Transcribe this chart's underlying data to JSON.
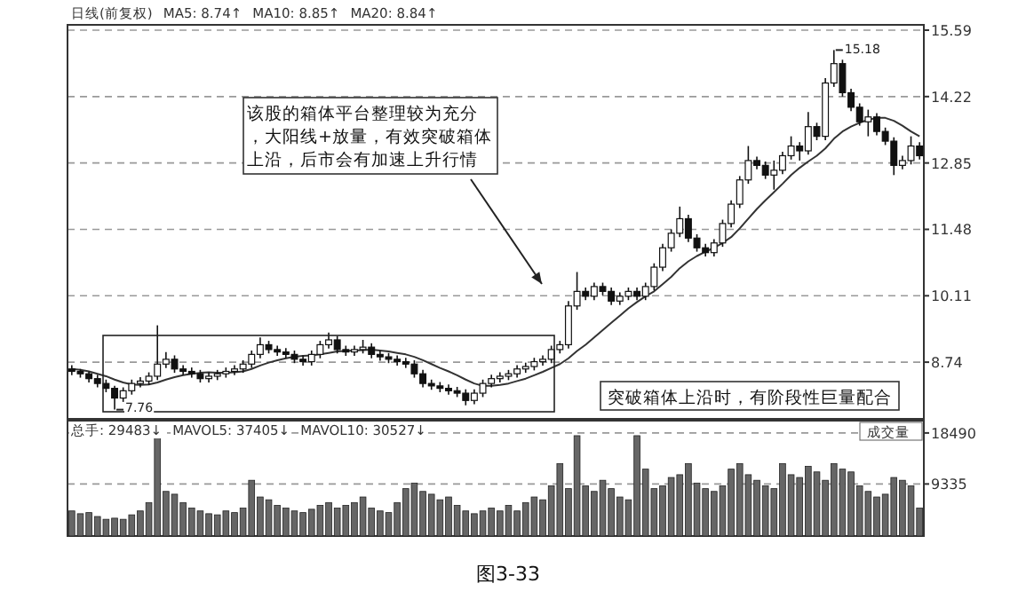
{
  "chart_data": [
    {
      "type": "candlestick",
      "subtitle": "日线(前复权)",
      "categories": [
        null,
        null,
        null,
        null,
        null,
        null,
        null,
        null,
        null,
        null,
        null,
        null,
        null,
        null,
        null,
        null,
        null,
        null,
        null,
        null,
        null,
        null,
        null,
        null,
        null,
        null,
        null,
        null,
        null,
        null,
        null,
        null,
        null,
        null,
        null,
        null,
        null,
        null,
        null,
        null,
        null,
        null,
        null,
        null,
        null,
        null,
        null,
        null,
        null,
        null,
        null,
        null,
        null,
        null,
        null,
        null,
        null,
        null,
        null,
        null,
        null,
        null,
        null,
        null,
        null,
        null,
        null,
        null,
        null,
        null,
        null,
        null,
        null,
        null,
        null,
        null,
        null,
        null,
        null,
        null,
        null,
        null,
        null,
        null,
        null,
        null,
        null,
        null,
        null,
        null,
        null,
        null,
        null,
        null,
        null,
        null,
        null,
        null,
        null,
        null
      ],
      "ohlc": [
        [
          8.6,
          8.68,
          8.47,
          8.55
        ],
        [
          8.55,
          8.6,
          8.42,
          8.5
        ],
        [
          8.5,
          8.55,
          8.32,
          8.4
        ],
        [
          8.4,
          8.48,
          8.22,
          8.3
        ],
        [
          8.3,
          8.38,
          8.12,
          8.2
        ],
        [
          8.2,
          8.25,
          7.76,
          8.0
        ],
        [
          8.0,
          8.22,
          7.92,
          8.15
        ],
        [
          8.15,
          8.38,
          8.07,
          8.3
        ],
        [
          8.3,
          8.43,
          8.22,
          8.35
        ],
        [
          8.35,
          8.53,
          8.27,
          8.45
        ],
        [
          8.45,
          9.5,
          8.37,
          8.7
        ],
        [
          8.7,
          8.95,
          8.62,
          8.8
        ],
        [
          8.8,
          8.88,
          8.52,
          8.6
        ],
        [
          8.6,
          8.68,
          8.47,
          8.55
        ],
        [
          8.55,
          8.63,
          8.42,
          8.5
        ],
        [
          8.5,
          8.58,
          8.32,
          8.4
        ],
        [
          8.4,
          8.53,
          8.32,
          8.45
        ],
        [
          8.45,
          8.58,
          8.37,
          8.5
        ],
        [
          8.5,
          8.63,
          8.42,
          8.55
        ],
        [
          8.55,
          8.68,
          8.47,
          8.6
        ],
        [
          8.6,
          8.78,
          8.52,
          8.7
        ],
        [
          8.7,
          8.98,
          8.62,
          8.9
        ],
        [
          8.9,
          9.25,
          8.82,
          9.1
        ],
        [
          9.1,
          9.18,
          8.92,
          9.0
        ],
        [
          9.0,
          9.08,
          8.87,
          8.95
        ],
        [
          8.95,
          9.03,
          8.82,
          8.9
        ],
        [
          8.9,
          8.98,
          8.72,
          8.8
        ],
        [
          8.8,
          8.88,
          8.67,
          8.75
        ],
        [
          8.75,
          8.98,
          8.67,
          8.9
        ],
        [
          8.9,
          9.18,
          8.82,
          9.1
        ],
        [
          9.1,
          9.35,
          9.02,
          9.2
        ],
        [
          9.2,
          9.28,
          8.92,
          9.0
        ],
        [
          9.0,
          9.08,
          8.87,
          8.95
        ],
        [
          8.95,
          9.08,
          8.87,
          9.0
        ],
        [
          9.0,
          9.2,
          8.92,
          9.05
        ],
        [
          9.05,
          9.13,
          8.82,
          8.9
        ],
        [
          8.9,
          8.98,
          8.77,
          8.85
        ],
        [
          8.85,
          8.93,
          8.72,
          8.8
        ],
        [
          8.8,
          8.88,
          8.67,
          8.75
        ],
        [
          8.75,
          8.83,
          8.62,
          8.7
        ],
        [
          8.7,
          8.78,
          8.42,
          8.5
        ],
        [
          8.5,
          8.58,
          8.22,
          8.3
        ],
        [
          8.3,
          8.38,
          8.17,
          8.25
        ],
        [
          8.25,
          8.33,
          8.12,
          8.2
        ],
        [
          8.2,
          8.28,
          8.07,
          8.15
        ],
        [
          8.15,
          8.23,
          8.02,
          8.1
        ],
        [
          8.1,
          8.18,
          7.85,
          7.95
        ],
        [
          7.95,
          8.18,
          7.87,
          8.1
        ],
        [
          8.1,
          8.38,
          8.02,
          8.3
        ],
        [
          8.3,
          8.48,
          8.22,
          8.4
        ],
        [
          8.4,
          8.53,
          8.32,
          8.45
        ],
        [
          8.45,
          8.58,
          8.37,
          8.5
        ],
        [
          8.5,
          8.68,
          8.42,
          8.6
        ],
        [
          8.6,
          8.73,
          8.52,
          8.65
        ],
        [
          8.65,
          8.83,
          8.57,
          8.75
        ],
        [
          8.75,
          8.88,
          8.67,
          8.8
        ],
        [
          8.8,
          9.08,
          8.72,
          9.0
        ],
        [
          9.0,
          9.18,
          8.92,
          9.1
        ],
        [
          9.1,
          10.0,
          9.02,
          9.9
        ],
        [
          9.9,
          10.6,
          9.82,
          10.2
        ],
        [
          10.2,
          10.28,
          10.02,
          10.1
        ],
        [
          10.1,
          10.38,
          10.02,
          10.3
        ],
        [
          10.3,
          10.38,
          10.12,
          10.2
        ],
        [
          10.2,
          10.28,
          9.92,
          10.0
        ],
        [
          10.0,
          10.18,
          9.92,
          10.1
        ],
        [
          10.1,
          10.28,
          10.02,
          10.2
        ],
        [
          10.2,
          10.28,
          10.02,
          10.1
        ],
        [
          10.1,
          10.38,
          10.02,
          10.3
        ],
        [
          10.3,
          10.78,
          10.22,
          10.7
        ],
        [
          10.7,
          11.18,
          10.62,
          11.1
        ],
        [
          11.1,
          11.48,
          11.02,
          11.4
        ],
        [
          11.4,
          11.95,
          11.32,
          11.7
        ],
        [
          11.7,
          11.78,
          11.22,
          11.3
        ],
        [
          11.3,
          11.38,
          11.02,
          11.1
        ],
        [
          11.1,
          11.18,
          10.92,
          11.0
        ],
        [
          11.0,
          11.28,
          10.92,
          11.2
        ],
        [
          11.2,
          11.68,
          11.12,
          11.6
        ],
        [
          11.6,
          12.08,
          11.52,
          12.0
        ],
        [
          12.0,
          12.58,
          11.92,
          12.5
        ],
        [
          12.5,
          13.2,
          12.42,
          12.9
        ],
        [
          12.9,
          12.98,
          12.72,
          12.8
        ],
        [
          12.8,
          12.88,
          12.52,
          12.6
        ],
        [
          12.6,
          12.9,
          12.3,
          12.7
        ],
        [
          12.7,
          13.08,
          12.62,
          13.0
        ],
        [
          13.0,
          13.4,
          12.92,
          13.2
        ],
        [
          13.2,
          13.28,
          12.9,
          13.1
        ],
        [
          13.1,
          13.9,
          13.02,
          13.6
        ],
        [
          13.6,
          13.68,
          13.32,
          13.4
        ],
        [
          13.4,
          14.6,
          13.32,
          14.5
        ],
        [
          14.5,
          15.18,
          14.42,
          14.9
        ],
        [
          14.9,
          14.98,
          14.22,
          14.3
        ],
        [
          14.3,
          14.38,
          13.92,
          14.0
        ],
        [
          14.0,
          14.08,
          13.62,
          13.7
        ],
        [
          13.7,
          13.95,
          13.4,
          13.8
        ],
        [
          13.8,
          13.88,
          13.42,
          13.5
        ],
        [
          13.5,
          13.58,
          13.22,
          13.3
        ],
        [
          13.3,
          13.38,
          12.6,
          12.8
        ],
        [
          12.8,
          13.0,
          12.72,
          12.9
        ],
        [
          12.9,
          13.4,
          12.82,
          13.2
        ],
        [
          13.2,
          13.28,
          12.92,
          13.0
        ]
      ],
      "series": [
        {
          "type": "line",
          "color": "#333333",
          "values": [
            8.6,
            8.58,
            8.55,
            8.5,
            8.45,
            8.38,
            8.32,
            8.28,
            8.27,
            8.28,
            8.32,
            8.38,
            8.43,
            8.47,
            8.5,
            8.52,
            8.53,
            8.52,
            8.52,
            8.53,
            8.55,
            8.6,
            8.67,
            8.73,
            8.78,
            8.82,
            8.85,
            8.87,
            8.88,
            8.9,
            8.93,
            8.96,
            8.97,
            8.98,
            8.99,
            9.0,
            8.98,
            8.96,
            8.93,
            8.9,
            8.85,
            8.78,
            8.7,
            8.62,
            8.55,
            8.47,
            8.38,
            8.3,
            8.25,
            8.25,
            8.27,
            8.3,
            8.35,
            8.4,
            8.47,
            8.54,
            8.62,
            8.7,
            8.82,
            8.97,
            9.1,
            9.25,
            9.4,
            9.55,
            9.7,
            9.85,
            9.98,
            10.1,
            10.2,
            10.35,
            10.5,
            10.68,
            10.82,
            10.93,
            11.02,
            11.1,
            11.2,
            11.32,
            11.5,
            11.7,
            11.9,
            12.08,
            12.25,
            12.42,
            12.6,
            12.75,
            12.88,
            13.0,
            13.15,
            13.35,
            13.5,
            13.6,
            13.68,
            13.74,
            13.78,
            13.78,
            13.72,
            13.62,
            13.5,
            13.4
          ]
        }
      ],
      "ylim": [
        7.57,
        15.7
      ],
      "yticks": [
        8.74,
        10.11,
        11.48,
        12.85,
        14.22,
        15.59
      ],
      "grid": "y",
      "annotations": [
        "该股的箱体平台整理较为充分，大阳线+放量，有效突破箱体上沿，后市会有加速上升行情",
        "突破箱体上沿时，有阶段性巨量配合",
        "15.18",
        "7.76",
        "MA5: 8.74↑",
        "MA10: 8.85↑",
        "MA20: 8.84↑"
      ]
    },
    {
      "type": "bar",
      "color": "#666666",
      "categories": [
        null,
        null,
        null,
        null,
        null,
        null,
        null,
        null,
        null,
        null,
        null,
        null,
        null,
        null,
        null,
        null,
        null,
        null,
        null,
        null,
        null,
        null,
        null,
        null,
        null,
        null,
        null,
        null,
        null,
        null,
        null,
        null,
        null,
        null,
        null,
        null,
        null,
        null,
        null,
        null,
        null,
        null,
        null,
        null,
        null,
        null,
        null,
        null,
        null,
        null,
        null,
        null,
        null,
        null,
        null,
        null,
        null,
        null,
        null,
        null,
        null,
        null,
        null,
        null,
        null,
        null,
        null,
        null,
        null,
        null,
        null,
        null,
        null,
        null,
        null,
        null,
        null,
        null,
        null,
        null,
        null,
        null,
        null,
        null,
        null,
        null,
        null,
        null,
        null,
        null,
        null,
        null,
        null,
        null,
        null,
        null,
        null,
        null,
        null,
        null
      ],
      "values": [
        4500,
        4000,
        4200,
        3500,
        3000,
        3200,
        3000,
        3800,
        4500,
        6000,
        18000,
        8000,
        7500,
        6000,
        5000,
        4500,
        4000,
        3800,
        4500,
        4200,
        5000,
        10000,
        7000,
        6500,
        5500,
        5000,
        4500,
        4200,
        4800,
        5500,
        6000,
        5000,
        5500,
        6000,
        7000,
        5000,
        4500,
        4200,
        6000,
        8500,
        9500,
        8000,
        7500,
        6500,
        7000,
        5500,
        4500,
        4000,
        4500,
        5000,
        4500,
        5500,
        4500,
        6000,
        7000,
        6500,
        9000,
        13000,
        8500,
        18000,
        9000,
        8000,
        10000,
        8500,
        7000,
        6500,
        18000,
        12000,
        8500,
        9000,
        10500,
        11000,
        13000,
        9500,
        8500,
        8000,
        9000,
        12000,
        13000,
        11000,
        10000,
        9000,
        8500,
        13000,
        11000,
        10500,
        12500,
        11500,
        10000,
        13000,
        12000,
        11500,
        9000,
        8000,
        7000,
        7500,
        10500,
        10000,
        9000,
        5000
      ],
      "ylim": [
        0,
        20700
      ],
      "yticks": [
        9335,
        18490
      ],
      "grid": "y",
      "annotations": [
        "总手: 29483↓",
        "MAVOL5: 37405↓",
        "MAVOL10: 30527↓",
        "成交量",
        "图3-33"
      ]
    }
  ]
}
